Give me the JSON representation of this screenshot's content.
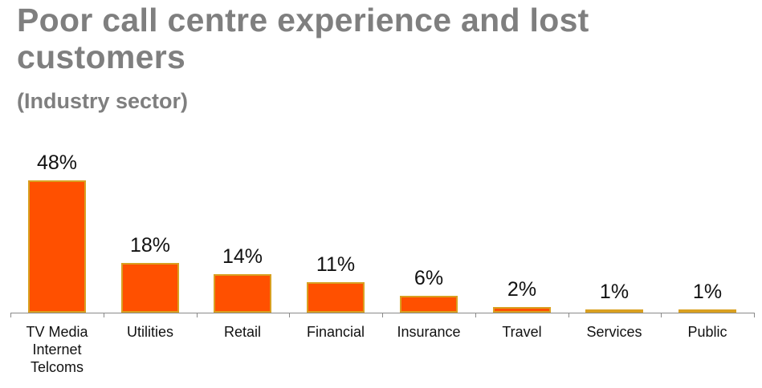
{
  "header": {
    "title": "Poor call centre experience and lost customers",
    "subtitle": "(Industry sector)"
  },
  "colors": {
    "title": "#7f7f7f",
    "bar_fill": "#ff5000",
    "bar_border": "#d9a021",
    "axis": "#8a8a8a"
  },
  "bars": [
    {
      "label": "TV Media\nInternet\nTelcoms",
      "value": 48,
      "display": "48%"
    },
    {
      "label": "Utilities",
      "value": 18,
      "display": "18%"
    },
    {
      "label": "Retail",
      "value": 14,
      "display": "14%"
    },
    {
      "label": "Financial",
      "value": 11,
      "display": "11%"
    },
    {
      "label": "Insurance",
      "value": 6,
      "display": "6%"
    },
    {
      "label": "Travel",
      "value": 2,
      "display": "2%"
    },
    {
      "label": "Services",
      "value": 1,
      "display": "1%"
    },
    {
      "label": "Public",
      "value": 1,
      "display": "1%"
    }
  ],
  "chart_data": {
    "type": "bar",
    "title": "Poor call centre experience and lost customers",
    "subtitle": "(Industry sector)",
    "categories": [
      "TV Media Internet Telcoms",
      "Utilities",
      "Retail",
      "Financial",
      "Insurance",
      "Travel",
      "Services",
      "Public"
    ],
    "values": [
      48,
      18,
      14,
      11,
      6,
      2,
      1,
      1
    ],
    "unit": "%",
    "xlabel": "",
    "ylabel": "",
    "ylim": [
      0,
      50
    ],
    "grid": false,
    "legend": "none",
    "data_labels": true
  }
}
